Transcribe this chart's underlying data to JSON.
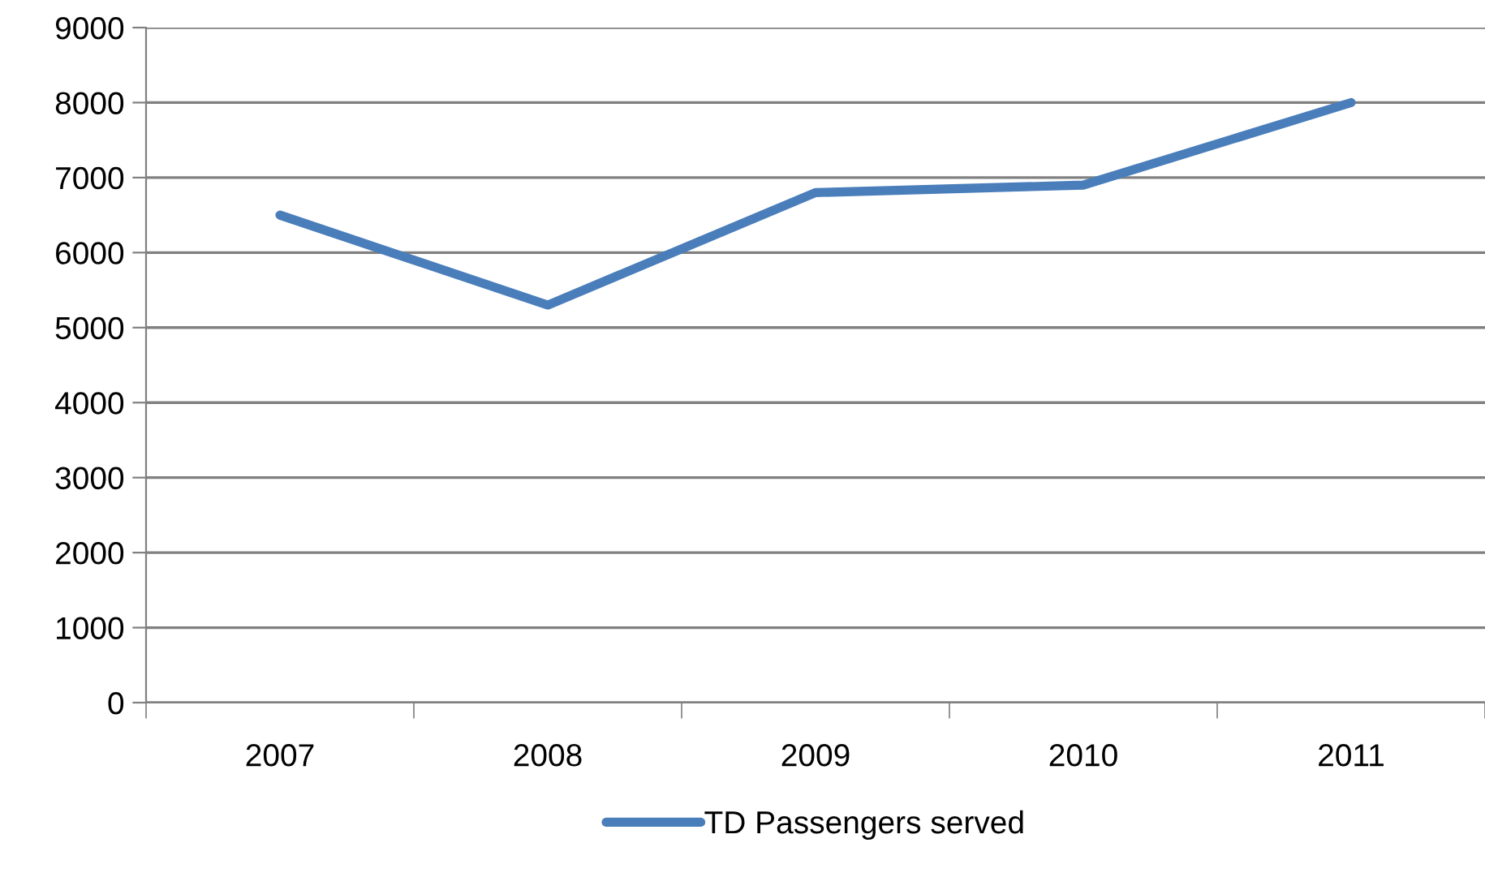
{
  "chart_data": {
    "type": "line",
    "categories": [
      "2007",
      "2008",
      "2009",
      "2010",
      "2011"
    ],
    "series": [
      {
        "name": "TD Passengers served",
        "color": "#4a7ebb",
        "values": [
          6500,
          5300,
          6800,
          6900,
          8000
        ]
      }
    ],
    "ylim": [
      0,
      9000
    ],
    "yticks": [
      0,
      1000,
      2000,
      3000,
      4000,
      5000,
      6000,
      7000,
      8000,
      9000
    ],
    "grid": "y",
    "legend": "bottom",
    "marker": "none",
    "line_style": "solid"
  }
}
